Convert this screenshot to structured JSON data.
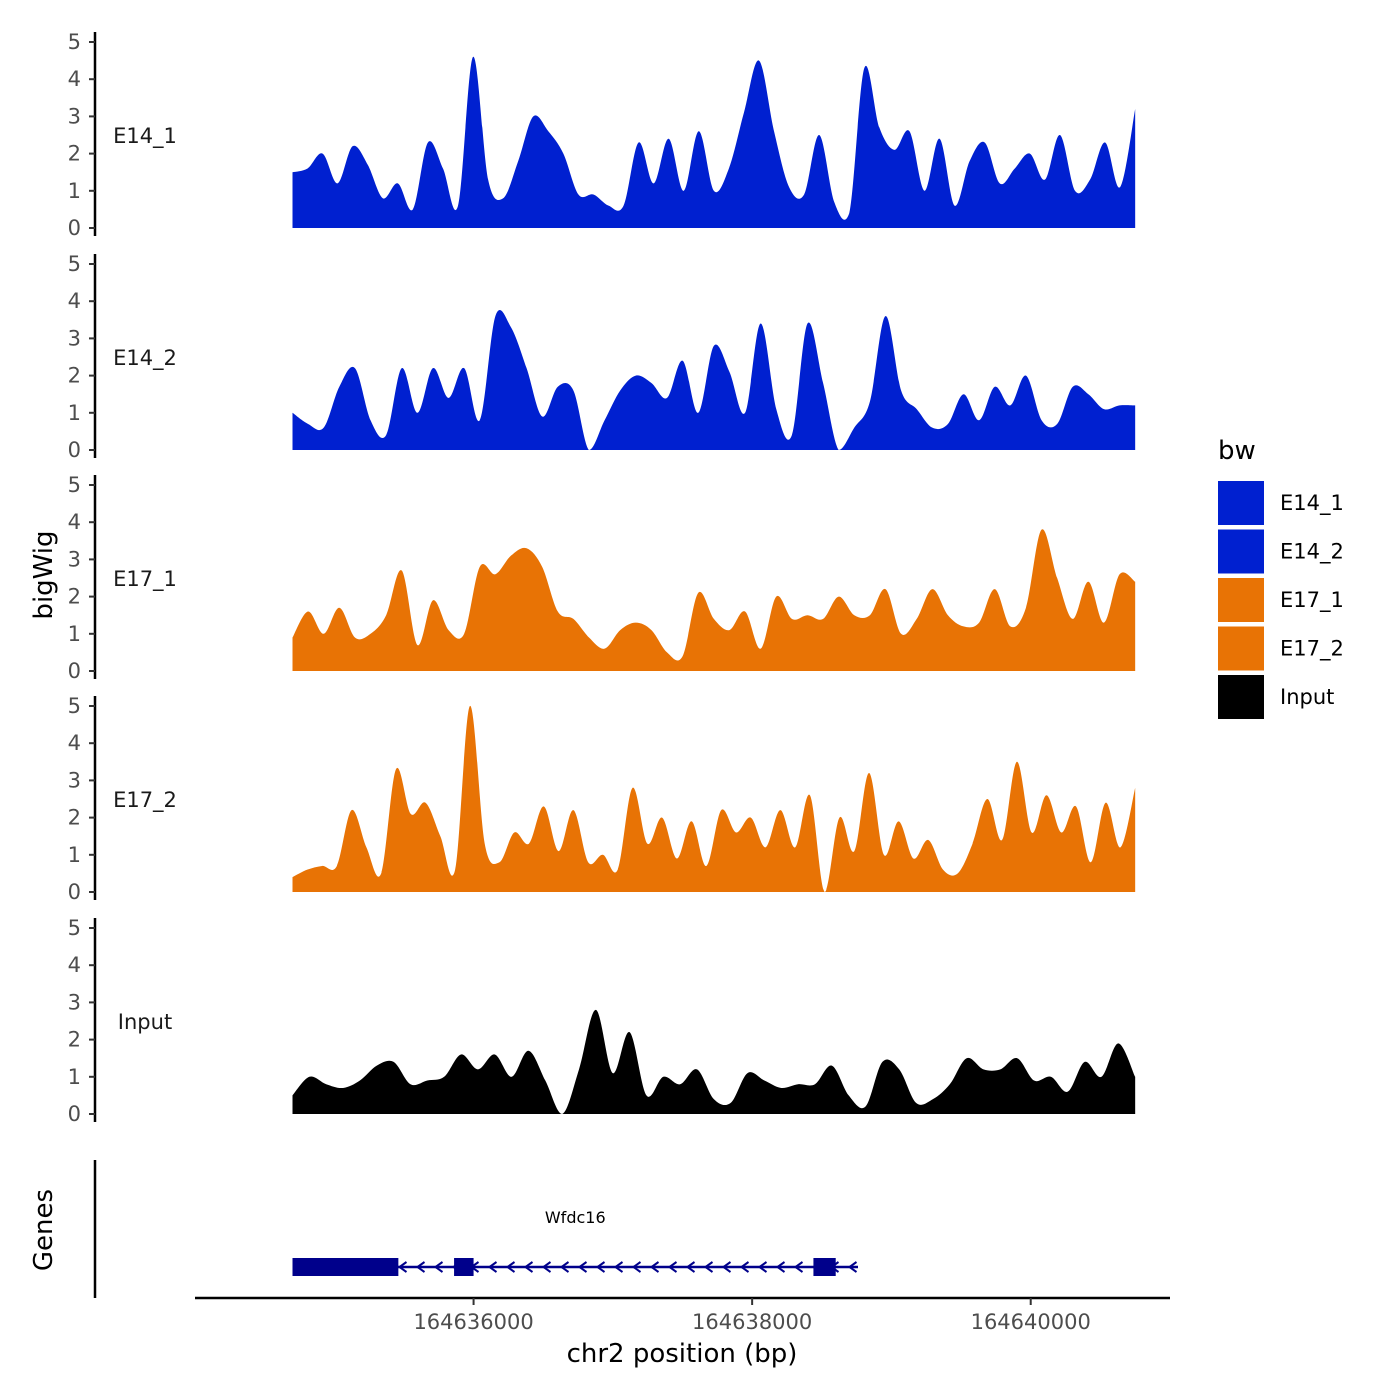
{
  "chart_data": {
    "type": "area",
    "title": "",
    "ylabel": "bigWig",
    "xlabel": "chr2 position (bp)",
    "genes_label": "Genes",
    "x_range": [
      164634700,
      164640750
    ],
    "xlim": [
      164634000,
      164641000
    ],
    "x_ticks": [
      164636000,
      164638000,
      164640000
    ],
    "x_tick_labels": [
      "164636000",
      "164638000",
      "164640000"
    ],
    "ylim": [
      0,
      5
    ],
    "y_ticks": [
      0,
      1,
      2,
      3,
      4,
      5
    ],
    "y_tick_labels": [
      "0",
      "1",
      "2",
      "3",
      "4",
      "5"
    ],
    "legend": {
      "title": "bw",
      "placement": "right",
      "entries": [
        {
          "name": "E14_1",
          "color": "#0020d0"
        },
        {
          "name": "E14_2",
          "color": "#0020d0"
        },
        {
          "name": "E17_1",
          "color": "#e87305"
        },
        {
          "name": "E17_2",
          "color": "#e87305"
        },
        {
          "name": "Input",
          "color": "#000000"
        }
      ]
    },
    "series": [
      {
        "name": "E14_1",
        "color": "#0020d0",
        "values": [
          1.5,
          1.6,
          2.0,
          1.2,
          2.2,
          1.7,
          0.8,
          1.2,
          0.5,
          2.3,
          1.6,
          0.6,
          4.6,
          1.3,
          0.8,
          1.8,
          3.0,
          2.6,
          2.0,
          0.9,
          0.9,
          0.6,
          0.6,
          2.3,
          1.2,
          2.4,
          1.0,
          2.6,
          1.0,
          1.6,
          3.1,
          4.5,
          2.6,
          1.1,
          0.9,
          2.5,
          0.7,
          0.4,
          4.3,
          2.7,
          2.1,
          2.6,
          1.0,
          2.4,
          0.6,
          1.8,
          2.3,
          1.2,
          1.6,
          2.0,
          1.3,
          2.5,
          1.0,
          1.3,
          2.3,
          1.1,
          3.2
        ]
      },
      {
        "name": "E14_2",
        "color": "#0020d0",
        "values": [
          1.0,
          0.7,
          0.6,
          1.7,
          2.2,
          0.8,
          0.4,
          2.2,
          1.0,
          2.2,
          1.4,
          2.2,
          0.8,
          3.6,
          3.3,
          2.2,
          0.9,
          1.7,
          1.6,
          0.0,
          0.8,
          1.6,
          2.0,
          1.8,
          1.4,
          2.4,
          1.0,
          2.8,
          2.1,
          1.0,
          3.4,
          1.1,
          0.4,
          3.4,
          1.8,
          0.0,
          0.6,
          1.3,
          3.6,
          1.6,
          1.1,
          0.6,
          0.7,
          1.5,
          0.8,
          1.7,
          1.2,
          2.0,
          0.8,
          0.7,
          1.7,
          1.5,
          1.1,
          1.2,
          1.2
        ]
      },
      {
        "name": "E17_1",
        "color": "#e87305",
        "values": [
          0.9,
          1.6,
          1.0,
          1.7,
          0.9,
          1.0,
          1.5,
          2.7,
          0.7,
          1.9,
          1.1,
          1.0,
          2.8,
          2.6,
          3.1,
          3.3,
          2.8,
          1.6,
          1.4,
          0.9,
          0.6,
          1.1,
          1.3,
          1.1,
          0.5,
          0.4,
          2.1,
          1.4,
          1.1,
          1.6,
          0.6,
          2.0,
          1.4,
          1.5,
          1.4,
          2.0,
          1.5,
          1.5,
          2.2,
          1.0,
          1.4,
          2.2,
          1.5,
          1.2,
          1.3,
          2.2,
          1.2,
          1.7,
          3.8,
          2.5,
          1.4,
          2.4,
          1.3,
          2.6,
          2.4
        ]
      },
      {
        "name": "E17_2",
        "color": "#e87305",
        "values": [
          0.4,
          0.6,
          0.7,
          0.7,
          2.2,
          1.2,
          0.5,
          3.3,
          2.1,
          2.4,
          1.5,
          0.6,
          5.0,
          1.3,
          0.8,
          1.6,
          1.3,
          2.3,
          1.1,
          2.2,
          0.8,
          1.0,
          0.6,
          2.8,
          1.3,
          2.0,
          0.9,
          1.9,
          0.7,
          2.2,
          1.6,
          2.0,
          1.2,
          2.2,
          1.2,
          2.6,
          0.0,
          2.0,
          1.1,
          3.2,
          1.0,
          1.9,
          0.9,
          1.4,
          0.6,
          0.5,
          1.3,
          2.5,
          1.4,
          3.5,
          1.6,
          2.6,
          1.6,
          2.3,
          0.8,
          2.4,
          1.2,
          2.8
        ]
      },
      {
        "name": "Input",
        "color": "#000000",
        "values": [
          0.5,
          1.0,
          0.8,
          0.7,
          0.9,
          1.3,
          1.4,
          0.8,
          0.9,
          1.0,
          1.6,
          1.2,
          1.6,
          1.0,
          1.7,
          0.9,
          0.0,
          1.2,
          2.8,
          1.1,
          2.2,
          0.5,
          1.0,
          0.8,
          1.2,
          0.4,
          0.3,
          1.1,
          0.9,
          0.7,
          0.8,
          0.8,
          1.3,
          0.5,
          0.2,
          1.4,
          1.2,
          0.3,
          0.4,
          0.8,
          1.5,
          1.2,
          1.2,
          1.5,
          0.9,
          1.0,
          0.6,
          1.4,
          1.0,
          1.9,
          1.0
        ]
      }
    ],
    "gene_track": {
      "gene": "Wfdc16",
      "strand": "-",
      "start": 164634700,
      "end": 164638760,
      "exons": [
        [
          164634700,
          164635460
        ],
        [
          164635860,
          164636000
        ],
        [
          164638440,
          164638600
        ]
      ]
    }
  }
}
